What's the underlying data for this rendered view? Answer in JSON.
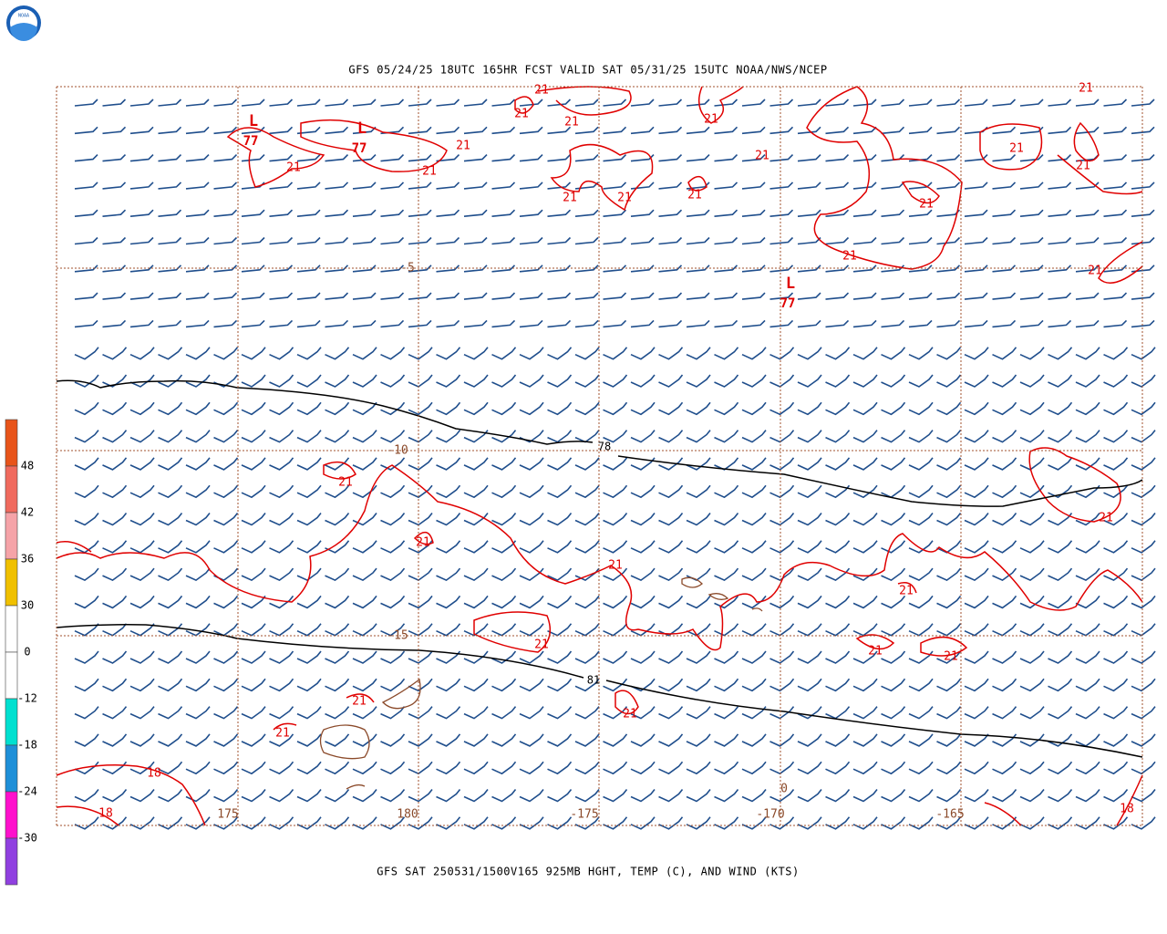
{
  "header": {
    "title": "GFS 05/24/25 18UTC 165HR FCST VALID SAT 05/31/25 15UTC NOAA/NWS/NCEP",
    "logo": "NOAA"
  },
  "footer": {
    "caption": "GFS SAT 250531/1500V165 925MB HGHT, TEMP (C), AND WIND (KTS)"
  },
  "colorbar": {
    "labels": [
      "48",
      "42",
      "36",
      "30",
      "0",
      "-12",
      "-18",
      "-24",
      "-30"
    ]
  },
  "map": {
    "lat_labels": [
      "-5",
      "-10",
      "-15"
    ],
    "lon_labels": [
      "175",
      "180",
      "-175",
      "-170",
      "-165"
    ],
    "temp_labels": [
      "21",
      "21",
      "21",
      "21",
      "21",
      "21",
      "21",
      "21",
      "21",
      "21",
      "21",
      "21",
      "21",
      "21",
      "21",
      "21",
      "21",
      "21",
      "21",
      "21",
      "21",
      "21",
      "21",
      "21",
      "21",
      "21",
      "21",
      "21",
      "18",
      "18",
      "18",
      "0"
    ],
    "lows": [
      {
        "mark": "L",
        "value": "77"
      },
      {
        "mark": "L",
        "value": "77"
      },
      {
        "mark": "L",
        "value": "77"
      }
    ],
    "height_labels": [
      "78",
      "81"
    ]
  }
}
